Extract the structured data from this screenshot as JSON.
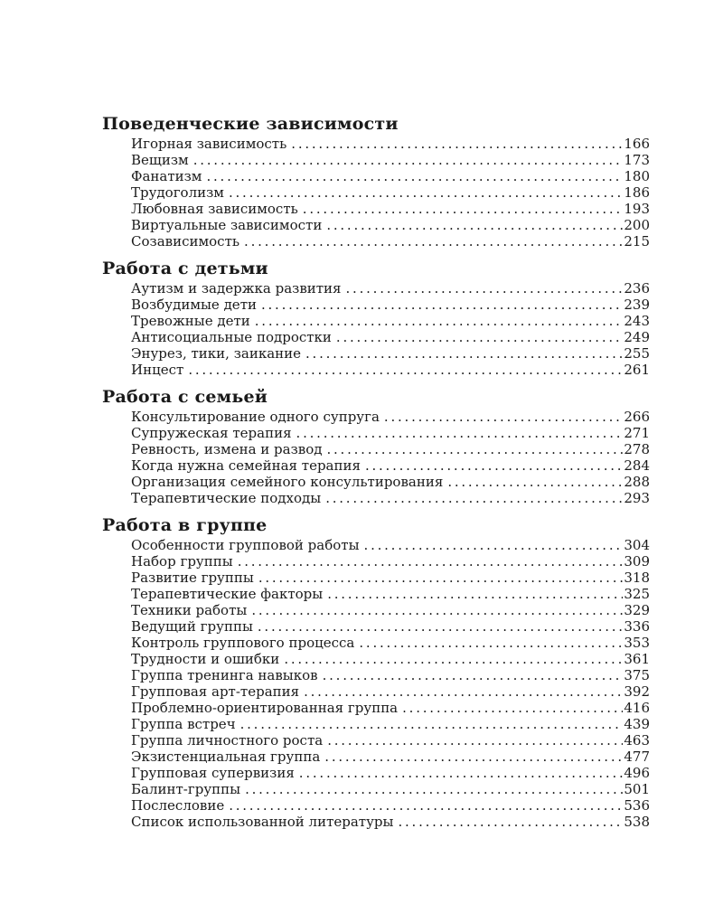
{
  "page": {
    "background": "#ffffff",
    "text_color": "#1a1a1a"
  },
  "toc": {
    "sections": [
      {
        "title": "Поведенческие зависимости",
        "items": [
          {
            "label": "Игорная зависимость",
            "page": "166"
          },
          {
            "label": "Вещизм",
            "page": "173"
          },
          {
            "label": "Фанатизм",
            "page": "180"
          },
          {
            "label": "Трудоголизм",
            "page": "186"
          },
          {
            "label": "Любовная зависимость",
            "page": "193"
          },
          {
            "label": "Виртуальные зависимости",
            "page": "200"
          },
          {
            "label": "Созависимость",
            "page": "215"
          }
        ]
      },
      {
        "title": "Работа с детьми",
        "items": [
          {
            "label": "Аутизм и задержка развития",
            "page": "236"
          },
          {
            "label": "Возбудимые дети",
            "page": "239"
          },
          {
            "label": "Тревожные дети",
            "page": "243"
          },
          {
            "label": "Антисоциальные подростки",
            "page": "249"
          },
          {
            "label": "Энурез, тики, заикание",
            "page": "255"
          },
          {
            "label": "Инцест",
            "page": "261"
          }
        ]
      },
      {
        "title": "Работа с семьей",
        "items": [
          {
            "label": "Консультирование одного супруга",
            "page": "266"
          },
          {
            "label": "Супружеская терапия",
            "page": "271"
          },
          {
            "label": "Ревность, измена и развод",
            "page": "278"
          },
          {
            "label": "Когда нужна семейная терапия",
            "page": "284"
          },
          {
            "label": "Организация семейного консультирования",
            "page": "288"
          },
          {
            "label": "Терапевтические подходы",
            "page": "293"
          }
        ]
      },
      {
        "title": "Работа в группе",
        "items": [
          {
            "label": "Особенности групповой работы",
            "page": "304"
          },
          {
            "label": "Набор группы",
            "page": "309"
          },
          {
            "label": "Развитие группы",
            "page": "318"
          },
          {
            "label": "Терапевтические факторы",
            "page": "325"
          },
          {
            "label": "Техники работы",
            "page": "329"
          },
          {
            "label": "Ведущий группы",
            "page": "336"
          },
          {
            "label": "Контроль группового процесса",
            "page": "353"
          },
          {
            "label": "Трудности и ошибки",
            "page": "361"
          },
          {
            "label": "Группа тренинга навыков",
            "page": "375"
          },
          {
            "label": "Групповая арт-терапия",
            "page": "392"
          },
          {
            "label": "Проблемно-ориентированная группа",
            "page": "416"
          },
          {
            "label": "Группа встреч",
            "page": "439"
          },
          {
            "label": "Группа личностного роста",
            "page": "463"
          },
          {
            "label": "Экзистенциальная группа",
            "page": "477"
          },
          {
            "label": "Групповая супервизия",
            "page": "496"
          },
          {
            "label": "Балинт-группы",
            "page": "501"
          },
          {
            "label": "Послесловие",
            "page": "536"
          },
          {
            "label": "Список использованной литературы",
            "page": "538"
          }
        ]
      }
    ]
  }
}
